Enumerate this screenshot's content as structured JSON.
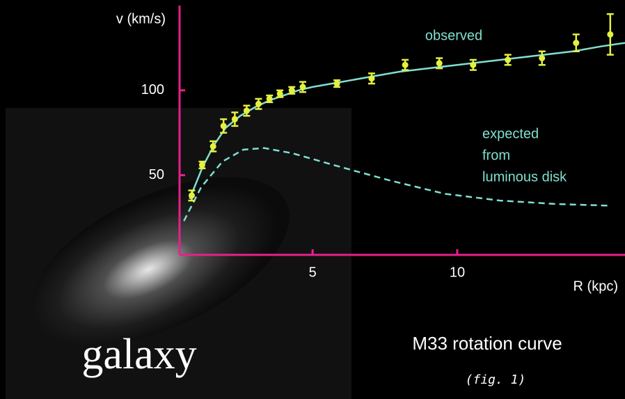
{
  "chart_data": {
    "type": "scatter",
    "y_label": "v (km/s)",
    "x_label": "R (kpc)",
    "xlim": [
      0.4,
      15.8
    ],
    "ylim": [
      3,
      150
    ],
    "xticks": [
      5,
      10
    ],
    "yticks": [
      50,
      100
    ],
    "axis_color": "#e8208a",
    "series": [
      {
        "name": "observed",
        "color": "#e4f040",
        "x": [
          0.82,
          1.18,
          1.56,
          1.92,
          2.31,
          2.72,
          3.13,
          3.51,
          3.87,
          4.28,
          4.66,
          5.84,
          7.04,
          8.2,
          9.38,
          10.55,
          11.75,
          12.93,
          14.11,
          15.29
        ],
        "values": [
          38,
          56,
          67,
          79,
          83,
          88,
          92,
          95,
          98,
          100,
          102,
          104,
          107,
          115,
          116,
          115,
          118,
          119,
          128,
          133
        ],
        "errors": [
          3,
          2,
          3,
          4,
          4,
          3,
          3,
          2,
          2,
          2,
          3,
          2,
          3,
          3,
          3,
          3,
          3,
          4,
          5,
          12
        ]
      },
      {
        "color": "#7fe0d0",
        "style": "solid",
        "x": [
          0.75,
          1.2,
          1.6,
          2,
          2.5,
          3,
          3.5,
          4,
          4.5,
          5,
          6,
          7,
          8,
          9,
          10,
          11,
          12,
          13,
          14,
          15,
          15.8
        ],
        "values": [
          36,
          55,
          68,
          78,
          85,
          90,
          94,
          97,
          100,
          102,
          105,
          108,
          111,
          113,
          115,
          117,
          119,
          121,
          123,
          126,
          128
        ]
      },
      {
        "name_lines": [
          "expected",
          "from",
          "luminous disk"
        ],
        "color": "#7fe0d0",
        "style": "dashed",
        "x": [
          0.55,
          1.15,
          1.88,
          2.6,
          3.32,
          4.28,
          5.72,
          7.64,
          9.57,
          11.49,
          13.4,
          15.29
        ],
        "values": [
          23,
          43,
          58,
          65,
          66,
          63,
          56,
          47,
          39,
          35,
          33,
          32
        ]
      }
    ],
    "image_label": "galaxy",
    "caption": "M33 rotation curve",
    "note": "(fig. 1)"
  }
}
